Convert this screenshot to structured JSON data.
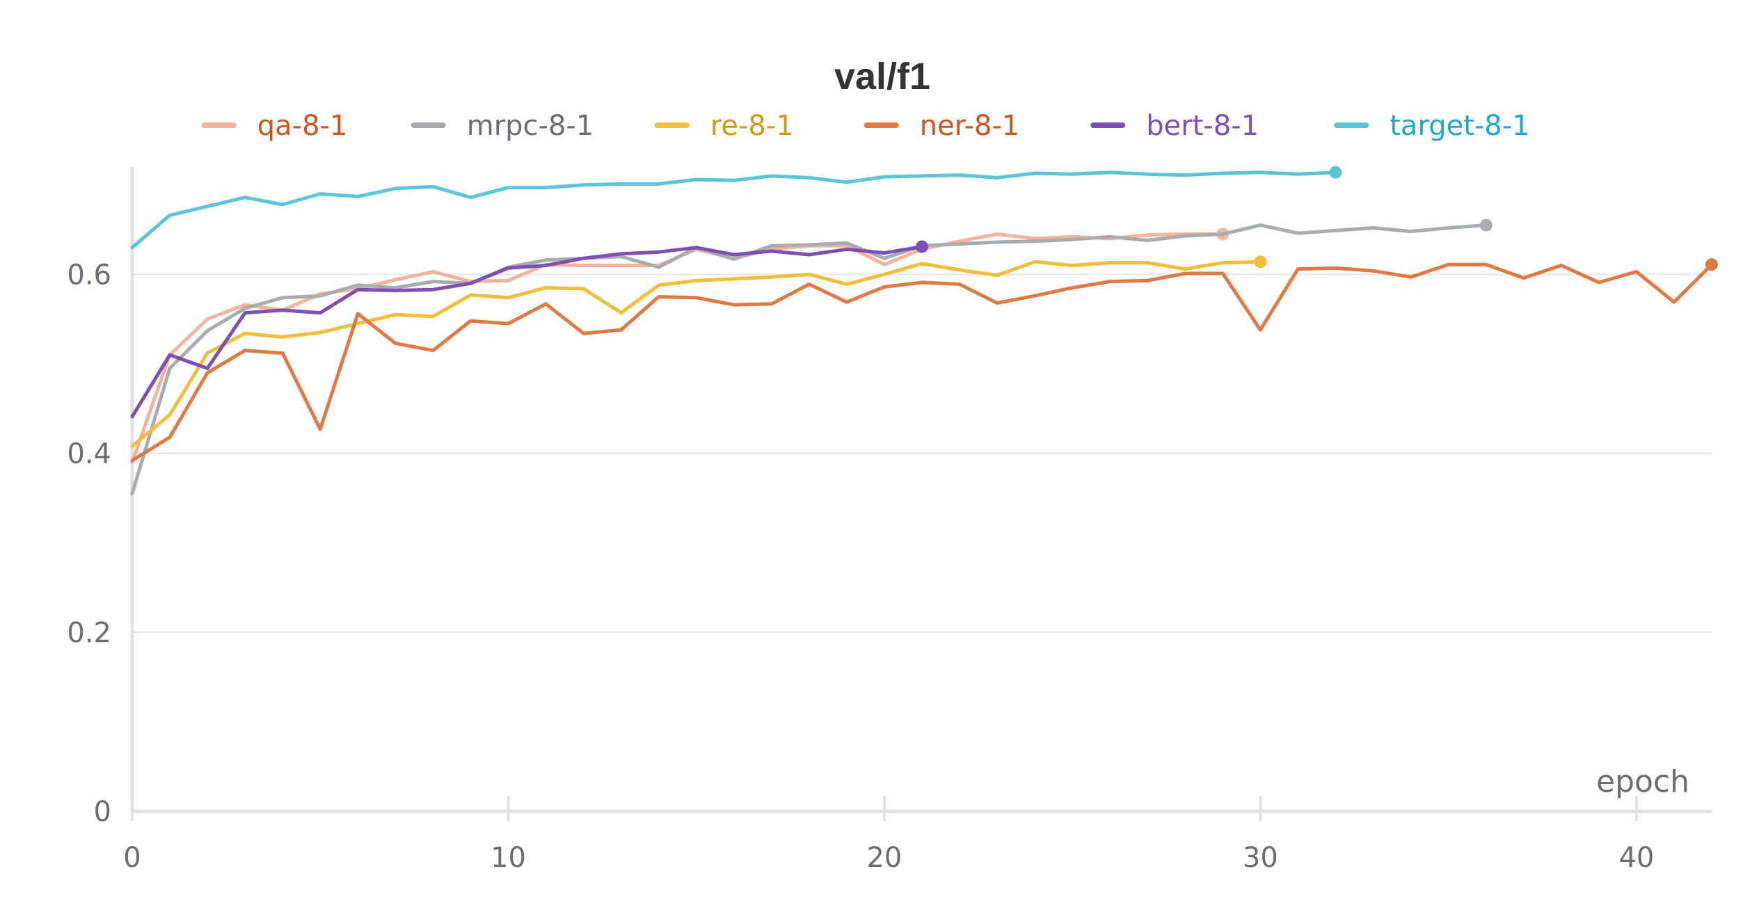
{
  "chart_data": {
    "type": "line",
    "title": "val/f1",
    "xlabel": "epoch",
    "ylabel": "",
    "xlim": [
      0,
      42
    ],
    "ylim": [
      0,
      0.72
    ],
    "xticks": [
      0,
      10,
      20,
      30,
      40
    ],
    "yticks": [
      0,
      0.2,
      0.4,
      0.6
    ],
    "ytick_labels": [
      "0",
      "0.2",
      "0.4",
      "0.6"
    ],
    "xtick_labels": [
      "0",
      "10",
      "20",
      "30",
      "40"
    ],
    "grid": true,
    "legend_position": "top",
    "series": [
      {
        "name": "qa-8-1",
        "color": "#f2b49c",
        "label_color": "#c9561f",
        "x": [
          0,
          1,
          2,
          3,
          4,
          5,
          6,
          7,
          8,
          9,
          10,
          11,
          12,
          13,
          14,
          15,
          16,
          17,
          18,
          19,
          20,
          21,
          22,
          23,
          24,
          25,
          26,
          27,
          28,
          29
        ],
        "y": [
          0.39,
          0.51,
          0.55,
          0.566,
          0.56,
          0.578,
          0.584,
          0.594,
          0.603,
          0.592,
          0.593,
          0.611,
          0.61,
          0.61,
          0.61,
          0.628,
          0.618,
          0.628,
          0.632,
          0.632,
          0.611,
          0.628,
          0.637,
          0.645,
          0.64,
          0.642,
          0.64,
          0.644,
          0.645,
          0.645
        ]
      },
      {
        "name": "mrpc-8-1",
        "color": "#a9abae",
        "label_color": "#6b6b76",
        "x": [
          0,
          1,
          2,
          3,
          4,
          5,
          6,
          7,
          8,
          9,
          10,
          11,
          12,
          13,
          14,
          15,
          16,
          17,
          18,
          19,
          20,
          21,
          22,
          23,
          24,
          25,
          26,
          27,
          28,
          29,
          30,
          31,
          32,
          33,
          34,
          35,
          36
        ],
        "y": [
          0.355,
          0.495,
          0.537,
          0.562,
          0.574,
          0.576,
          0.588,
          0.585,
          0.592,
          0.59,
          0.608,
          0.616,
          0.618,
          0.62,
          0.608,
          0.63,
          0.617,
          0.632,
          0.633,
          0.635,
          0.618,
          0.632,
          0.634,
          0.636,
          0.637,
          0.639,
          0.642,
          0.638,
          0.643,
          0.645,
          0.655,
          0.646,
          0.649,
          0.652,
          0.648,
          0.652,
          0.655
        ]
      },
      {
        "name": "re-8-1",
        "color": "#f0bd3d",
        "label_color": "#d49a12",
        "x": [
          0,
          1,
          2,
          3,
          4,
          5,
          6,
          7,
          8,
          9,
          10,
          11,
          12,
          13,
          14,
          15,
          16,
          17,
          18,
          19,
          20,
          21,
          22,
          23,
          24,
          25,
          26,
          27,
          28,
          29,
          30
        ],
        "y": [
          0.408,
          0.443,
          0.512,
          0.534,
          0.53,
          0.535,
          0.545,
          0.555,
          0.553,
          0.577,
          0.574,
          0.585,
          0.584,
          0.557,
          0.588,
          0.593,
          0.595,
          0.597,
          0.6,
          0.589,
          0.6,
          0.612,
          0.605,
          0.599,
          0.614,
          0.61,
          0.613,
          0.613,
          0.606,
          0.613,
          0.614
        ]
      },
      {
        "name": "ner-8-1",
        "color": "#e07a43",
        "label_color": "#c9561f",
        "x": [
          0,
          1,
          2,
          3,
          4,
          5,
          6,
          7,
          8,
          9,
          10,
          11,
          12,
          13,
          14,
          15,
          16,
          17,
          18,
          19,
          20,
          21,
          22,
          23,
          24,
          25,
          26,
          27,
          28,
          29,
          30,
          31,
          32,
          33,
          34,
          35,
          36,
          37,
          38,
          39,
          40,
          41,
          42
        ],
        "y": [
          0.392,
          0.418,
          0.49,
          0.515,
          0.512,
          0.427,
          0.556,
          0.523,
          0.515,
          0.548,
          0.545,
          0.567,
          0.534,
          0.538,
          0.575,
          0.574,
          0.566,
          0.567,
          0.589,
          0.569,
          0.586,
          0.591,
          0.589,
          0.568,
          0.576,
          0.585,
          0.592,
          0.593,
          0.601,
          0.601,
          0.538,
          0.606,
          0.607,
          0.604,
          0.597,
          0.611,
          0.611,
          0.596,
          0.61,
          0.591,
          0.603,
          0.569,
          0.611
        ]
      },
      {
        "name": "bert-8-1",
        "color": "#7d4fb2",
        "label_color": "#7d4fb2",
        "x": [
          0,
          1,
          2,
          3,
          4,
          5,
          6,
          7,
          8,
          9,
          10,
          11,
          12,
          13,
          14,
          15,
          16,
          17,
          18,
          19,
          20,
          21
        ],
        "y": [
          0.441,
          0.51,
          0.495,
          0.557,
          0.56,
          0.557,
          0.583,
          0.582,
          0.583,
          0.59,
          0.607,
          0.61,
          0.618,
          0.623,
          0.625,
          0.63,
          0.622,
          0.626,
          0.622,
          0.628,
          0.624,
          0.631
        ]
      },
      {
        "name": "target-8-1",
        "color": "#5bc4d9",
        "label_color": "#1fa8c9",
        "x": [
          0,
          1,
          2,
          3,
          4,
          5,
          6,
          7,
          8,
          9,
          10,
          11,
          12,
          13,
          14,
          15,
          16,
          17,
          18,
          19,
          20,
          21,
          22,
          23,
          24,
          25,
          26,
          27,
          28,
          29,
          30,
          31,
          32
        ],
        "y": [
          0.63,
          0.666,
          0.676,
          0.686,
          0.678,
          0.69,
          0.687,
          0.696,
          0.698,
          0.686,
          0.697,
          0.697,
          0.7,
          0.701,
          0.701,
          0.706,
          0.705,
          0.71,
          0.708,
          0.703,
          0.709,
          0.71,
          0.711,
          0.708,
          0.713,
          0.712,
          0.714,
          0.712,
          0.711,
          0.713,
          0.714,
          0.712,
          0.714
        ]
      }
    ]
  }
}
